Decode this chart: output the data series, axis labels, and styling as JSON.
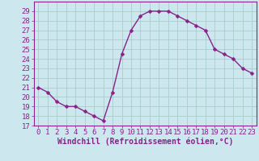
{
  "x": [
    0,
    1,
    2,
    3,
    4,
    5,
    6,
    7,
    8,
    9,
    10,
    11,
    12,
    13,
    14,
    15,
    16,
    17,
    18,
    19,
    20,
    21,
    22,
    23
  ],
  "y": [
    21.0,
    20.5,
    19.5,
    19.0,
    19.0,
    18.5,
    18.0,
    17.5,
    20.5,
    24.5,
    27.0,
    28.5,
    29.0,
    29.0,
    29.0,
    28.5,
    28.0,
    27.5,
    27.0,
    25.0,
    24.5,
    24.0,
    23.0,
    22.5
  ],
  "line_color": "#882288",
  "marker": "D",
  "marker_size": 2.5,
  "bg_color": "#cce8ee",
  "xlabel": "Windchill (Refroidissement éolien,°C)",
  "xlabel_fontsize": 7,
  "ylim": [
    17,
    30
  ],
  "xlim": [
    -0.5,
    23.5
  ],
  "yticks": [
    17,
    18,
    19,
    20,
    21,
    22,
    23,
    24,
    25,
    26,
    27,
    28,
    29
  ],
  "xticks": [
    0,
    1,
    2,
    3,
    4,
    5,
    6,
    7,
    8,
    9,
    10,
    11,
    12,
    13,
    14,
    15,
    16,
    17,
    18,
    19,
    20,
    21,
    22,
    23
  ],
  "grid_color": "#aacccc",
  "tick_fontsize": 6.5,
  "line_width": 1.0,
  "fig_width": 3.2,
  "fig_height": 2.0,
  "dpi": 100
}
